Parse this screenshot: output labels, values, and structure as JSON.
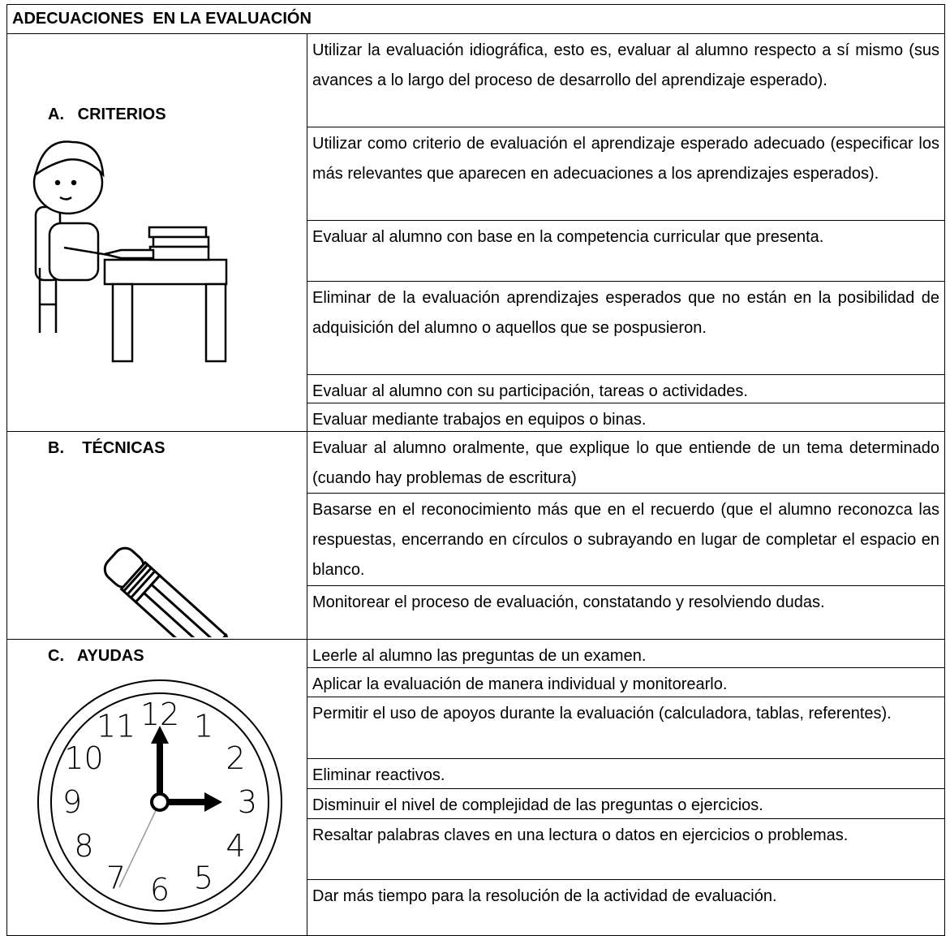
{
  "table": {
    "title": "ADECUACIONES  EN LA EVALUACIÓN",
    "sections": [
      {
        "label": "A.   CRITERIOS",
        "items": [
          "Utilizar la evaluación idiográfica, esto es, evaluar al alumno respecto a sí mismo (sus avances a lo largo del proceso de desarrollo del aprendizaje esperado).",
          "Utilizar como criterio de evaluación el aprendizaje esperado adecuado (especificar los más relevantes que aparecen en adecuaciones a los aprendizajes esperados).",
          "Evaluar al alumno con base en la competencia curricular que presenta.",
          "Eliminar de la evaluación aprendizajes esperados que no están en la posibilidad de adquisición del alumno o aquellos que se pospusieron.",
          "Evaluar al alumno con su participación, tareas o actividades.",
          "Evaluar mediante trabajos en equipos o binas."
        ]
      },
      {
        "label": "B.    TÉCNICAS",
        "items": [
          "Evaluar al alumno oralmente, que explique lo que entiende de un tema determinado  (cuando hay problemas de escritura)",
          "Basarse en el reconocimiento más que en el recuerdo (que el alumno reconozca las  respuestas,  encerrando en círculos o subrayando en lugar de completar el espacio en blanco.",
          "Monitorear el proceso de evaluación, constatando y resolviendo dudas."
        ]
      },
      {
        "label": "C.   AYUDAS",
        "items": [
          "Leerle al alumno las preguntas de un examen.",
          "Aplicar la evaluación de manera individual y monitorearlo.",
          "Permitir el uso de apoyos durante la evaluación (calculadora, tablas, referentes).",
          "Eliminar reactivos.",
          "Disminuir el nivel de complejidad de las preguntas o ejercicios.",
          "Resaltar palabras claves en una lectura o datos en ejercicios o problemas.",
          "Dar más tiempo para la resolución de la actividad de evaluación."
        ]
      }
    ]
  },
  "clock": {
    "numerals": [
      "12",
      "1",
      "2",
      "3",
      "4",
      "5",
      "6",
      "7",
      "8",
      "9",
      "10",
      "11"
    ]
  }
}
